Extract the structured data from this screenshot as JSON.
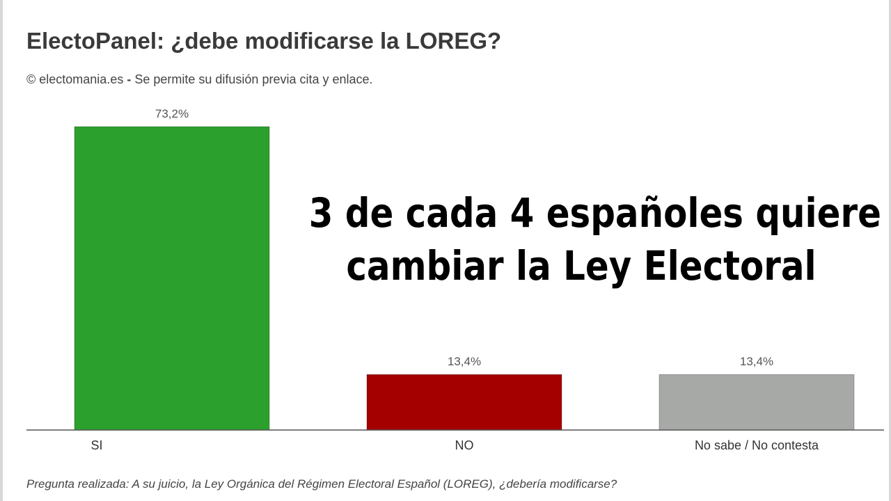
{
  "header": {
    "title": "ElectoPanel: ¿debe modificarse la LOREG?",
    "source_site": "© electomania.es",
    "source_separator": " - ",
    "source_note": "Se permite su difusión previa cita y enlace."
  },
  "overlay": {
    "line1": "3 de cada 4 españoles quiere",
    "line2": "cambiar la Ley Electoral"
  },
  "footer": {
    "question": "Pregunta realizada: A su juicio, la Ley Orgánica del Régimen Electoral Español (LOREG), ¿debería modificarse?"
  },
  "chart_data": {
    "type": "bar",
    "title": "ElectoPanel: ¿debe modificarse la LOREG?",
    "categories": [
      "SI",
      "NO",
      "No sabe / No contesta"
    ],
    "values": [
      73.2,
      13.4,
      13.4
    ],
    "data_labels": [
      "73,2%",
      "13,4%",
      "13,4%"
    ],
    "colors": [
      "#2ca02c",
      "#a50000",
      "#a6a9a6"
    ],
    "ylim": [
      0,
      73.2
    ],
    "grid": false,
    "legend": "none"
  }
}
